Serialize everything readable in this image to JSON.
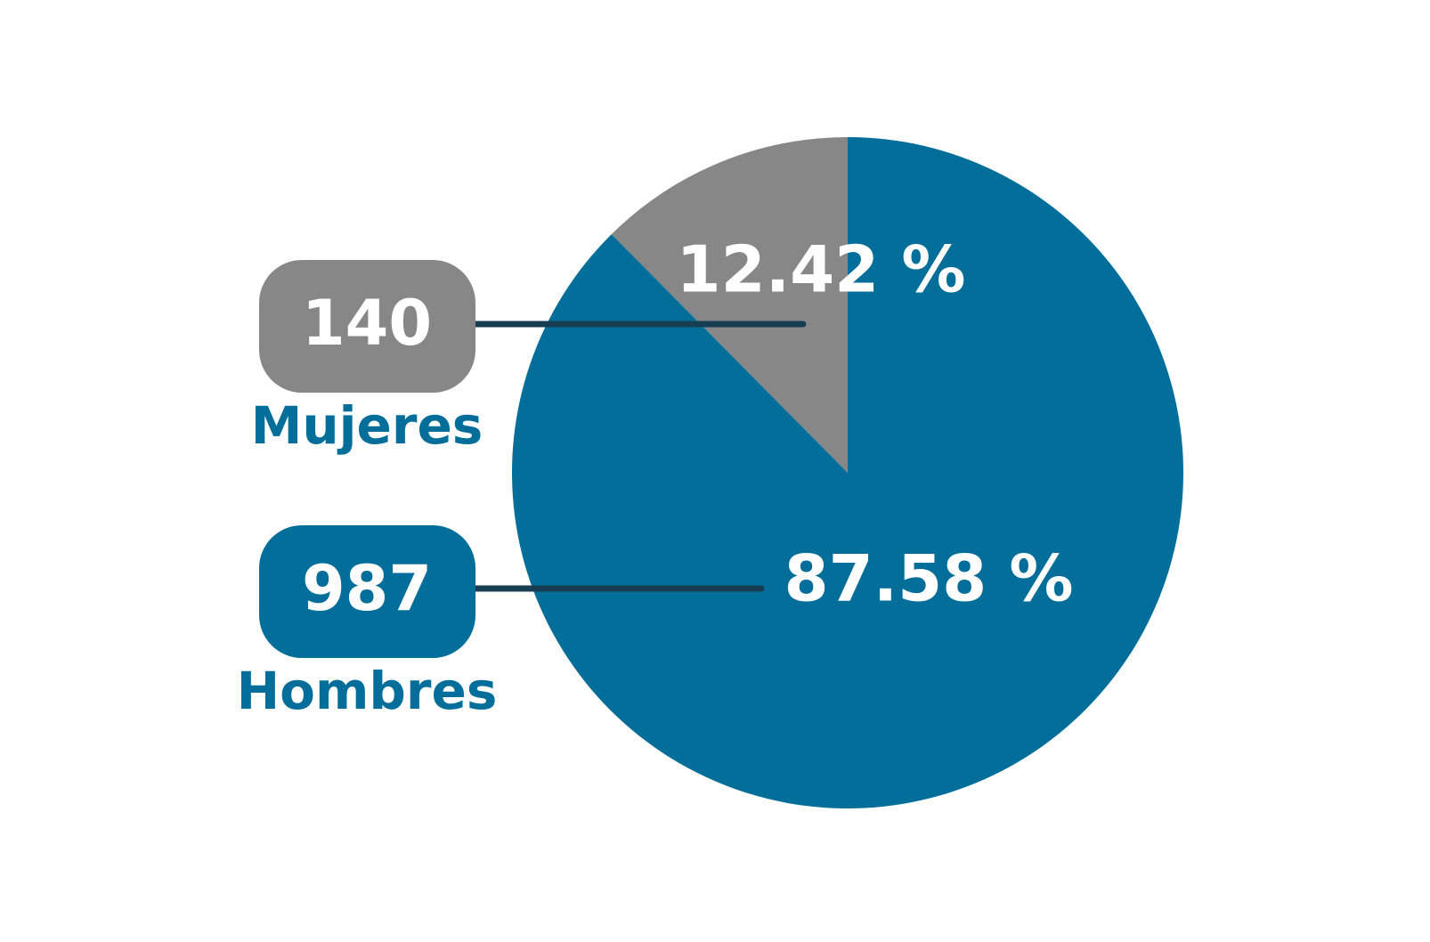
{
  "chart_data": {
    "type": "pie",
    "categories": [
      "Mujeres",
      "Hombres"
    ],
    "values": [
      12.42,
      87.58
    ],
    "value_labels": [
      "12.42 %",
      "87.58 %"
    ],
    "counts": [
      140,
      987
    ],
    "colors": [
      "#878787",
      "#026e99"
    ]
  }
}
